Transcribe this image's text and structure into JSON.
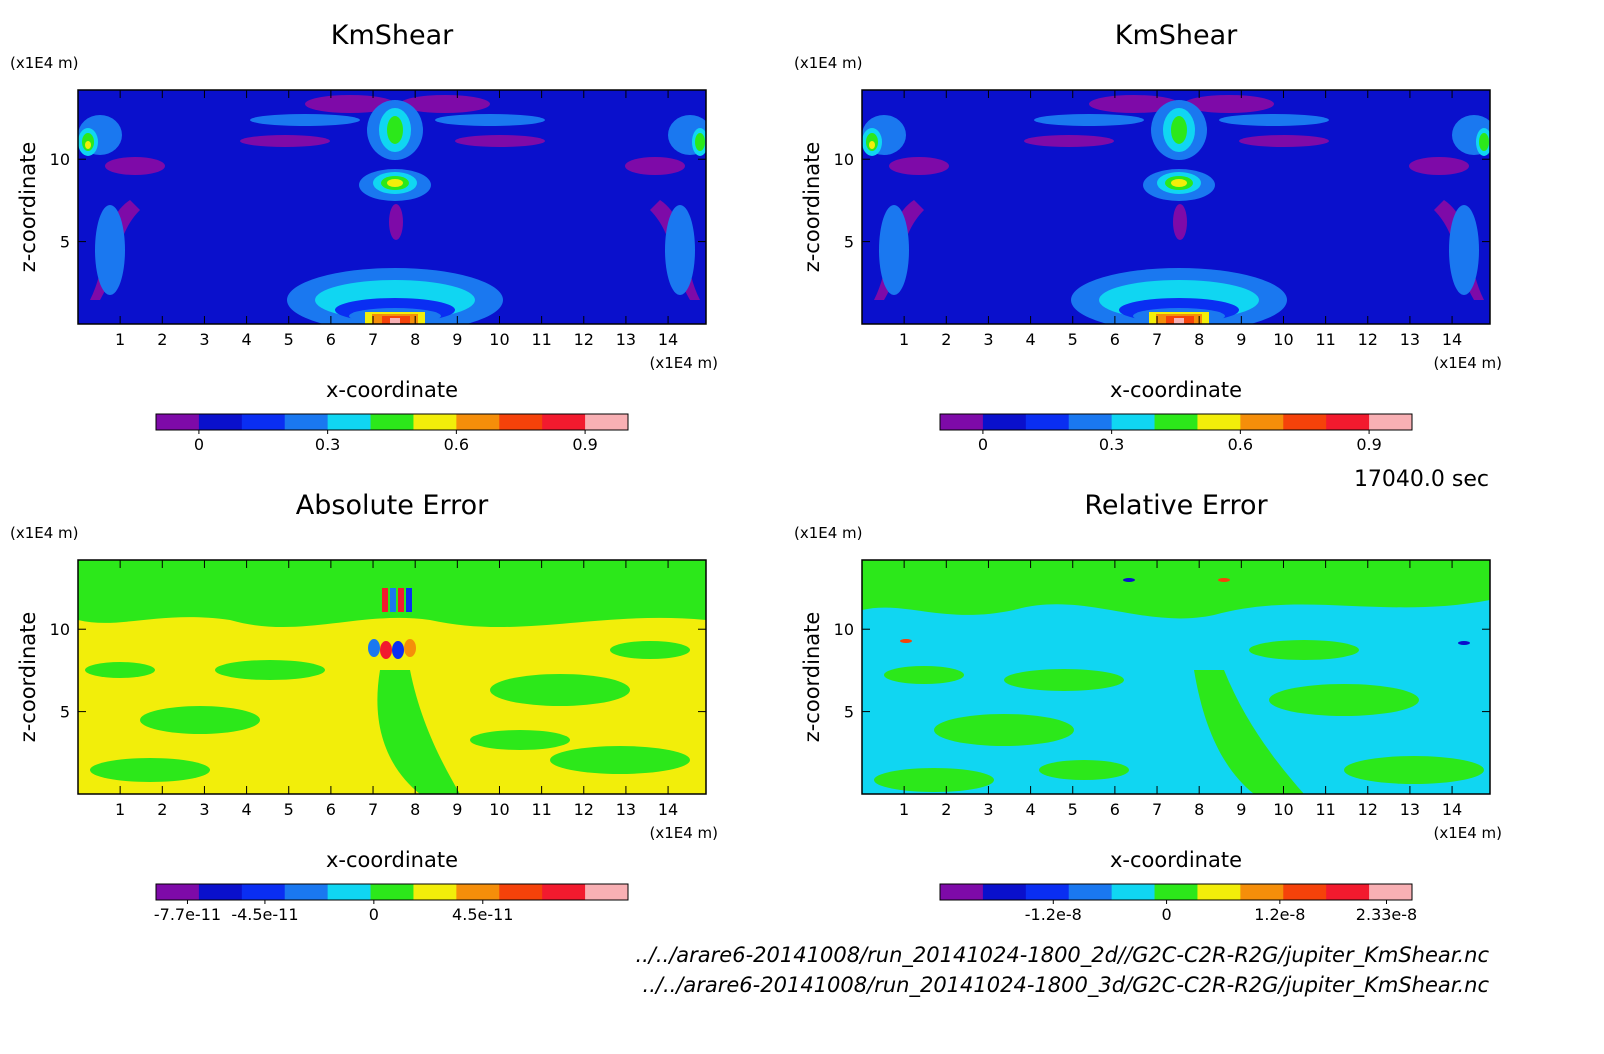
{
  "time_label": "17040.0 sec",
  "file_paths": [
    "../../arare6-20141008/run_20141024-1800_2d//G2C-C2R-R2G/jupiter_KmShear.nc",
    "../../arare6-20141008/run_20141024-1800_3d/G2C-C2R-R2G/jupiter_KmShear.nc"
  ],
  "chart_data": [
    {
      "type": "heatmap",
      "title": "KmShear",
      "xlabel": "x-coordinate",
      "ylabel": "z-coordinate",
      "x_unit": "(x1E4 m)",
      "y_unit": "(x1E4 m)",
      "xlim": [
        0,
        14.9
      ],
      "ylim": [
        0,
        14.2
      ],
      "x_ticks": [
        1,
        2,
        3,
        4,
        5,
        6,
        7,
        8,
        9,
        10,
        11,
        12,
        13,
        14
      ],
      "y_ticks": [
        5,
        10
      ],
      "background_level_color": "#0a10cc",
      "colorbar": {
        "colors": [
          "#7e0aa8",
          "#0a10cc",
          "#0a2ef2",
          "#1a78f0",
          "#10d6f2",
          "#2ce81a",
          "#f2ee0a",
          "#f58e0a",
          "#f5420a",
          "#f21a2e",
          "#f8b0b4"
        ],
        "tick_labels": [
          "0",
          "0.3",
          "0.6",
          "0.9"
        ],
        "tick_values": [
          0,
          0.3,
          0.6,
          0.9
        ],
        "range": [
          -0.1,
          1.0
        ]
      }
    },
    {
      "type": "heatmap",
      "title": "KmShear",
      "xlabel": "x-coordinate",
      "ylabel": "z-coordinate",
      "x_unit": "(x1E4 m)",
      "y_unit": "(x1E4 m)",
      "xlim": [
        0,
        14.9
      ],
      "ylim": [
        0,
        14.2
      ],
      "x_ticks": [
        1,
        2,
        3,
        4,
        5,
        6,
        7,
        8,
        9,
        10,
        11,
        12,
        13,
        14
      ],
      "y_ticks": [
        5,
        10
      ],
      "background_level_color": "#0a10cc",
      "colorbar": {
        "colors": [
          "#7e0aa8",
          "#0a10cc",
          "#0a2ef2",
          "#1a78f0",
          "#10d6f2",
          "#2ce81a",
          "#f2ee0a",
          "#f58e0a",
          "#f5420a",
          "#f21a2e",
          "#f8b0b4"
        ],
        "tick_labels": [
          "0",
          "0.3",
          "0.6",
          "0.9"
        ],
        "tick_values": [
          0,
          0.3,
          0.6,
          0.9
        ],
        "range": [
          -0.1,
          1.0
        ]
      }
    },
    {
      "type": "heatmap",
      "title": "Absolute Error",
      "xlabel": "x-coordinate",
      "ylabel": "z-coordinate",
      "x_unit": "(x1E4 m)",
      "y_unit": "(x1E4 m)",
      "xlim": [
        0,
        14.9
      ],
      "ylim": [
        0,
        14.2
      ],
      "x_ticks": [
        1,
        2,
        3,
        4,
        5,
        6,
        7,
        8,
        9,
        10,
        11,
        12,
        13,
        14
      ],
      "y_ticks": [
        5,
        10
      ],
      "background_level_color": "#f2ee0a",
      "colorbar": {
        "colors": [
          "#7e0aa8",
          "#0a10cc",
          "#0a2ef2",
          "#1a78f0",
          "#10d6f2",
          "#2ce81a",
          "#f2ee0a",
          "#f58e0a",
          "#f5420a",
          "#f21a2e",
          "#f8b0b4"
        ],
        "tick_labels": [
          "-7.7e-11",
          "-4.5e-11",
          "0",
          "4.5e-11"
        ],
        "tick_values": [
          -7.7e-11,
          -4.5e-11,
          0,
          4.5e-11
        ],
        "range": [
          -9e-11,
          1.05e-10
        ]
      }
    },
    {
      "type": "heatmap",
      "title": "Relative Error",
      "xlabel": "x-coordinate",
      "ylabel": "z-coordinate",
      "x_unit": "(x1E4 m)",
      "y_unit": "(x1E4 m)",
      "xlim": [
        0,
        14.9
      ],
      "ylim": [
        0,
        14.2
      ],
      "x_ticks": [
        1,
        2,
        3,
        4,
        5,
        6,
        7,
        8,
        9,
        10,
        11,
        12,
        13,
        14
      ],
      "y_ticks": [
        5,
        10
      ],
      "background_level_color": "#10d6f2",
      "colorbar": {
        "colors": [
          "#7e0aa8",
          "#0a10cc",
          "#0a2ef2",
          "#1a78f0",
          "#10d6f2",
          "#2ce81a",
          "#f2ee0a",
          "#f58e0a",
          "#f5420a",
          "#f21a2e",
          "#f8b0b4"
        ],
        "tick_labels": [
          "-1.2e-8",
          "0",
          "1.2e-8",
          "2.33e-8"
        ],
        "tick_values": [
          -1.2e-08,
          0,
          1.2e-08,
          2.33e-08
        ],
        "range": [
          -2.4e-08,
          2.6e-08
        ]
      }
    }
  ]
}
